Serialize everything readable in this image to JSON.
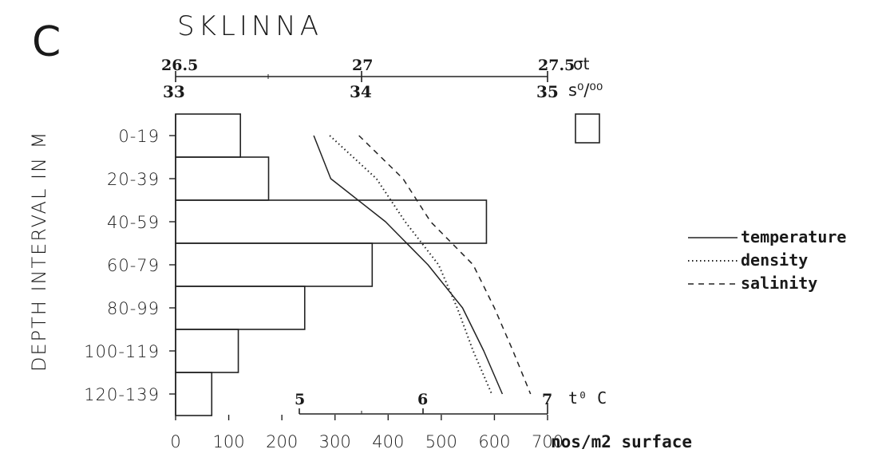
{
  "chart_data": {
    "type": "bar",
    "panel_letter": "C",
    "title": "SKLINNA",
    "orientation": "horizontal",
    "categories": [
      "0-19",
      "20-39",
      "40-59",
      "60-79",
      "80-99",
      "100-119",
      "120-139"
    ],
    "values": [
      122,
      175,
      585,
      370,
      243,
      118,
      68
    ],
    "xlabel": "nos/m2 surface",
    "ylabel": "DEPTH INTERVAL IN M",
    "xlim": [
      0,
      700
    ],
    "xticks": [
      "0",
      "100",
      "200",
      "300",
      "400",
      "500",
      "600",
      "700"
    ],
    "top_axis": {
      "sigma_label": "σt",
      "sigma_ticks": [
        "26.5",
        "27",
        "27.5"
      ],
      "salinity_label": "s⁰/⁰⁰",
      "salinity_ticks": [
        "33",
        "34",
        "35"
      ]
    },
    "temp_axis": {
      "label": "t⁰ C",
      "ticks": [
        "5",
        "6",
        "7"
      ]
    },
    "series": [
      {
        "name": "temperature",
        "style": "solid",
        "depth": [
          10,
          30,
          50,
          70,
          90,
          110,
          130
        ],
        "x": [
          260,
          292,
          395,
          475,
          540,
          580,
          615
        ]
      },
      {
        "name": "density",
        "style": "dotted",
        "depth": [
          10,
          30,
          50,
          70,
          90,
          110,
          130
        ],
        "x": [
          290,
          378,
          432,
          495,
          530,
          560,
          595
        ]
      },
      {
        "name": "salinity",
        "style": "dashed",
        "depth": [
          10,
          30,
          50,
          70,
          90,
          110,
          130
        ],
        "x": [
          345,
          428,
          480,
          560,
          600,
          635,
          668
        ]
      }
    ],
    "legend": {
      "placement": "right",
      "entries": [
        "temperature",
        "density",
        "salinity"
      ]
    },
    "grid": false
  }
}
